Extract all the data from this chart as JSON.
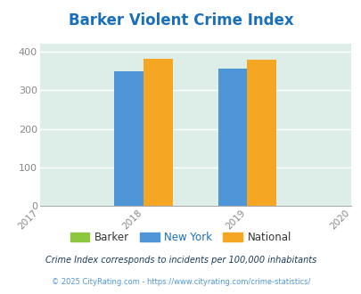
{
  "title": "Barker Violent Crime Index",
  "title_color": "#1a6fba",
  "title_fontsize": 12,
  "bar_groups": {
    "2018": {
      "barker": null,
      "new_york": 349,
      "national": 382
    },
    "2019": {
      "barker": null,
      "new_york": 356,
      "national": 379
    }
  },
  "bar_width": 0.28,
  "group_centers": [
    1,
    2
  ],
  "xlim": [
    0,
    3
  ],
  "ylim": [
    0,
    420
  ],
  "yticks": [
    0,
    100,
    200,
    300,
    400
  ],
  "xticks": [
    0,
    1,
    2,
    3
  ],
  "xticklabels": [
    "2017",
    "2018",
    "2019",
    "2020"
  ],
  "colors": {
    "barker": "#8dc63f",
    "new_york": "#4f96d8",
    "national": "#f5a623"
  },
  "bg_color": "#ddeee8",
  "grid_color": "#ffffff",
  "legend_labels": [
    "Barker",
    "New York",
    "National"
  ],
  "legend_colors": [
    "#8dc63f",
    "#4f96d8",
    "#f5a623"
  ],
  "footnote1": "Crime Index corresponds to incidents per 100,000 inhabitants",
  "footnote2": "© 2025 CityRating.com - https://www.cityrating.com/crime-statistics/",
  "footnote1_color": "#1a3a5c",
  "footnote2_color": "#4f96d8"
}
